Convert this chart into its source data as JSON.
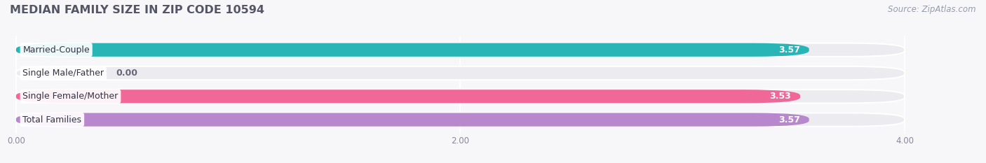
{
  "title": "MEDIAN FAMILY SIZE IN ZIP CODE 10594",
  "source": "Source: ZipAtlas.com",
  "categories": [
    "Married-Couple",
    "Single Male/Father",
    "Single Female/Mother",
    "Total Families"
  ],
  "values": [
    3.57,
    0.0,
    3.53,
    3.57
  ],
  "bar_colors": [
    "#29b5b5",
    "#a8b8e8",
    "#f06898",
    "#b888cc"
  ],
  "bg_bar_color": "#ebebf0",
  "xlim_data": [
    0.0,
    4.0
  ],
  "xlim_display": [
    -0.05,
    4.3
  ],
  "xticks": [
    0.0,
    2.0,
    4.0
  ],
  "xtick_labels": [
    "0.00",
    "2.00",
    "4.00"
  ],
  "value_labels": [
    "3.57",
    "0.00",
    "3.53",
    "3.57"
  ],
  "title_color": "#555566",
  "title_fontsize": 11.5,
  "source_fontsize": 8.5,
  "bar_label_fontsize": 9,
  "value_fontsize": 9,
  "background_color": "#f7f7fa",
  "bar_height": 0.58,
  "n_bars": 4
}
